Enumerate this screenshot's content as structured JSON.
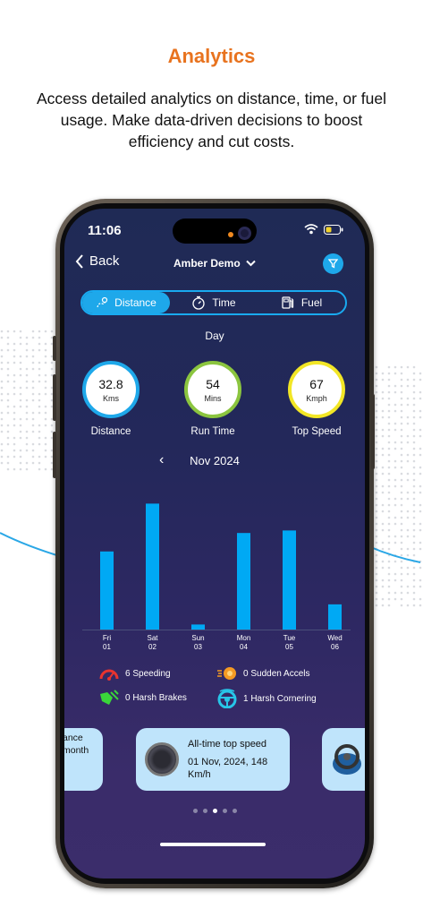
{
  "headline": "Analytics",
  "description": "Access detailed analytics on distance, time, or fuel usage. Make data-driven decisions to boost efficiency and cut costs.",
  "status": {
    "time": "11:06"
  },
  "nav": {
    "back_label": "Back",
    "title": "Amber Demo"
  },
  "segments": [
    {
      "label": "Distance",
      "icon": "route-pin-icon",
      "active": true
    },
    {
      "label": "Time",
      "icon": "stopwatch-icon",
      "active": false
    },
    {
      "label": "Fuel",
      "icon": "fuel-pump-icon",
      "active": false
    }
  ],
  "period": "Day",
  "stats": [
    {
      "value": "32.8",
      "unit": "Kms",
      "label": "Distance",
      "color": "#1ea8ea"
    },
    {
      "value": "54",
      "unit": "Mins",
      "label": "Run Time",
      "color": "#8bc53f"
    },
    {
      "value": "67",
      "unit": "Kmph",
      "label": "Top Speed",
      "color": "#f2e626"
    }
  ],
  "month": "Nov 2024",
  "chart_data": {
    "type": "bar",
    "categories": [
      "Fri 01",
      "Sat 02",
      "Sun 03",
      "Mon 04",
      "Tue 05",
      "Wed 06"
    ],
    "day_labels": [
      "Fri",
      "Sat",
      "Sun",
      "Mon",
      "Tue",
      "Wed"
    ],
    "date_labels": [
      "01",
      "02",
      "03",
      "04",
      "05",
      "06"
    ],
    "values": [
      93,
      150,
      6,
      115,
      118,
      30
    ],
    "ylim": [
      0,
      160
    ],
    "bar_color": "#00a9f4"
  },
  "events": [
    {
      "label": "6 Speeding",
      "icon": "speedometer-icon",
      "color": "#e8342f"
    },
    {
      "label": "0 Sudden Accels",
      "icon": "acceleration-icon",
      "color": "#f59a23"
    },
    {
      "label": "0 Harsh Brakes",
      "icon": "harsh-brake-icon",
      "color": "#3ad63a"
    },
    {
      "label": "1 Harsh Cornering",
      "icon": "steering-wheel-icon",
      "color": "#27c6e8"
    }
  ],
  "cards": {
    "left_text": "ance month",
    "main_title": "All-time top speed",
    "main_value": "01 Nov, 2024, 148 Km/h"
  }
}
